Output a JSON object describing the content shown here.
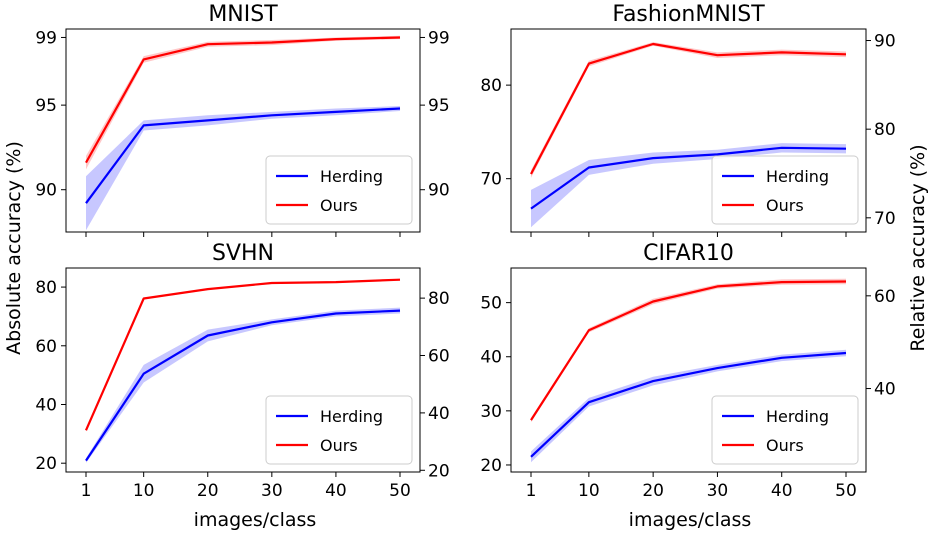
{
  "figure": {
    "ylabel_left": "Absolute accuracy (%)",
    "ylabel_right": "Relative accuracy (%)",
    "xlabel": "images/class",
    "colors": {
      "herding": "#0000ff",
      "ours": "#ff0000"
    }
  },
  "chart_data": [
    {
      "type": "line",
      "title": "MNIST",
      "x": [
        1,
        10,
        20,
        30,
        40,
        50
      ],
      "xticks": [
        "1",
        "10",
        "20",
        "30",
        "40",
        "50"
      ],
      "ylim": [
        87.5,
        99.5
      ],
      "yticks": [
        90,
        95,
        99
      ],
      "y2lim": [
        87.5,
        99.5
      ],
      "y2ticks": [
        90,
        95,
        99
      ],
      "show_xticks": false,
      "legend": "lower-right",
      "series": [
        {
          "name": "Herding",
          "color": "#0000ff",
          "values": [
            89.2,
            93.8,
            94.1,
            94.4,
            94.6,
            94.8
          ],
          "band": [
            1.6,
            0.3,
            0.3,
            0.2,
            0.2,
            0.15
          ]
        },
        {
          "name": "Ours",
          "color": "#ff0000",
          "values": [
            91.6,
            97.7,
            98.6,
            98.7,
            98.9,
            99.0
          ],
          "band": [
            0.4,
            0.2,
            0.15,
            0.15,
            0.1,
            0.1
          ]
        }
      ]
    },
    {
      "type": "line",
      "title": "FashionMNIST",
      "x": [
        1,
        10,
        20,
        30,
        40,
        50
      ],
      "xticks": [
        "1",
        "10",
        "20",
        "30",
        "40",
        "50"
      ],
      "ylim": [
        64.3,
        86.0
      ],
      "yticks": [
        70,
        80
      ],
      "y2lim": [
        68.4,
        91.3
      ],
      "y2ticks": [
        70,
        80,
        90
      ],
      "show_xticks": false,
      "legend": "lower-right",
      "series": [
        {
          "name": "Herding",
          "color": "#0000ff",
          "values": [
            66.8,
            71.2,
            72.2,
            72.6,
            73.3,
            73.2
          ],
          "band": [
            2.0,
            0.8,
            0.6,
            0.5,
            0.5,
            0.5
          ]
        },
        {
          "name": "Ours",
          "color": "#ff0000",
          "values": [
            70.5,
            82.3,
            84.4,
            83.2,
            83.5,
            83.3
          ],
          "band": [
            0.4,
            0.3,
            0.2,
            0.3,
            0.3,
            0.3
          ]
        }
      ]
    },
    {
      "type": "line",
      "title": "SVHN",
      "x": [
        1,
        10,
        20,
        30,
        40,
        50
      ],
      "xticks": [
        "1",
        "10",
        "20",
        "30",
        "40",
        "50"
      ],
      "ylim": [
        17.0,
        86.5
      ],
      "yticks": [
        20,
        40,
        60,
        80
      ],
      "y2lim": [
        19.4,
        90.5
      ],
      "y2ticks": [
        20,
        40,
        60,
        80
      ],
      "show_xticks": true,
      "legend": "lower-right",
      "series": [
        {
          "name": "Herding",
          "color": "#0000ff",
          "values": [
            20.9,
            50.5,
            63.5,
            68.0,
            71.0,
            72.0
          ],
          "band": [
            0.8,
            3.0,
            2.0,
            1.0,
            1.0,
            1.0
          ]
        },
        {
          "name": "Ours",
          "color": "#ff0000",
          "values": [
            31.2,
            76.1,
            79.3,
            81.4,
            81.7,
            82.5
          ],
          "band": [
            0.4,
            0.3,
            0.3,
            0.3,
            0.3,
            0.3
          ]
        }
      ]
    },
    {
      "type": "line",
      "title": "CIFAR10",
      "x": [
        1,
        10,
        20,
        30,
        40,
        50
      ],
      "xticks": [
        "1",
        "10",
        "20",
        "30",
        "40",
        "50"
      ],
      "ylim": [
        18.7,
        56.4
      ],
      "yticks": [
        20,
        30,
        40,
        50
      ],
      "y2lim": [
        22.0,
        66.0
      ],
      "y2ticks": [
        40,
        60
      ],
      "show_xticks": true,
      "legend": "lower-right",
      "series": [
        {
          "name": "Herding",
          "color": "#0000ff",
          "values": [
            21.5,
            31.6,
            35.5,
            37.9,
            39.8,
            40.7
          ],
          "band": [
            1.0,
            0.8,
            0.8,
            0.6,
            0.6,
            0.6
          ]
        },
        {
          "name": "Ours",
          "color": "#ff0000",
          "values": [
            28.3,
            44.9,
            50.2,
            53.0,
            53.8,
            53.9
          ],
          "band": [
            0.4,
            0.4,
            0.5,
            0.4,
            0.5,
            0.5
          ]
        }
      ]
    }
  ]
}
